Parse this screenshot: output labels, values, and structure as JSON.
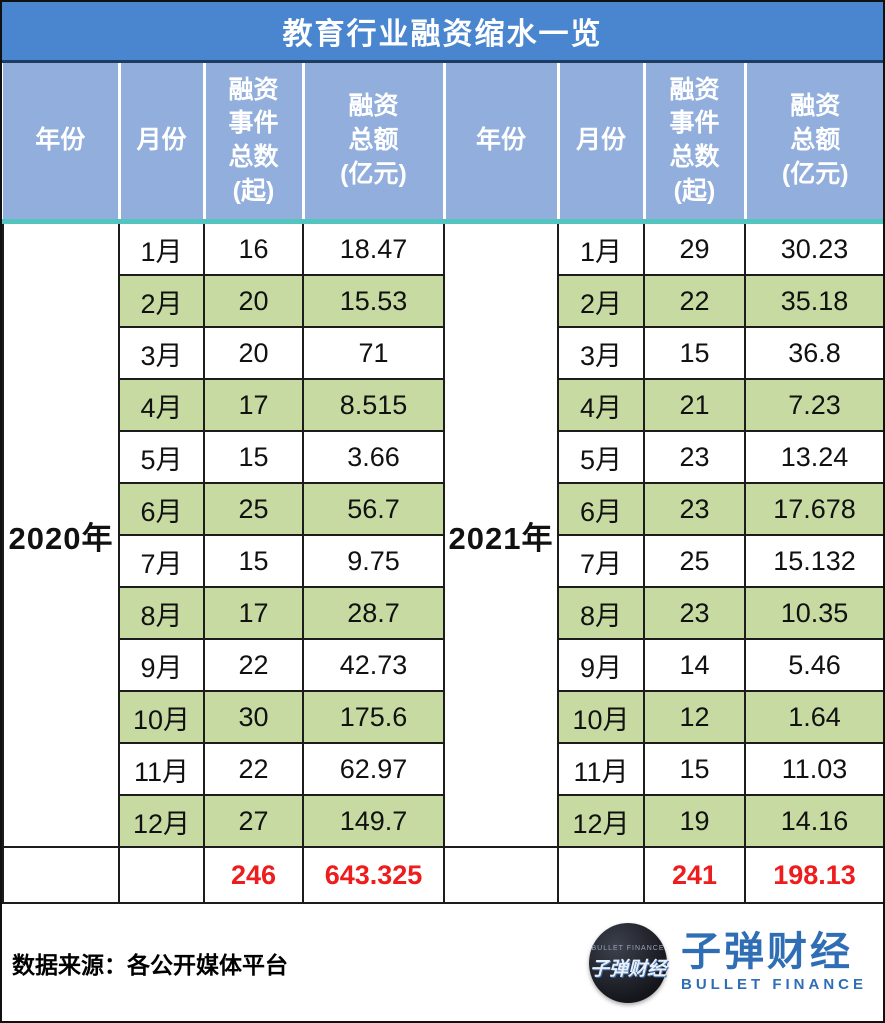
{
  "title": "教育行业融资缩水一览",
  "columns": {
    "year": "年份",
    "month": "月份",
    "count": "融资事件总数(起)",
    "amount": "融资总额(亿元)"
  },
  "table": {
    "left": {
      "year": "2020年",
      "rows": [
        {
          "month": "1月",
          "count": "16",
          "amount": "18.47"
        },
        {
          "month": "2月",
          "count": "20",
          "amount": "15.53"
        },
        {
          "month": "3月",
          "count": "20",
          "amount": "71"
        },
        {
          "month": "4月",
          "count": "17",
          "amount": "8.515"
        },
        {
          "month": "5月",
          "count": "15",
          "amount": "3.66"
        },
        {
          "month": "6月",
          "count": "25",
          "amount": "56.7"
        },
        {
          "month": "7月",
          "count": "15",
          "amount": "9.75"
        },
        {
          "month": "8月",
          "count": "17",
          "amount": "28.7"
        },
        {
          "month": "9月",
          "count": "22",
          "amount": "42.73"
        },
        {
          "month": "10月",
          "count": "30",
          "amount": "175.6"
        },
        {
          "month": "11月",
          "count": "22",
          "amount": "62.97"
        },
        {
          "month": "12月",
          "count": "27",
          "amount": "149.7"
        }
      ],
      "total_count": "246",
      "total_amount": "643.325"
    },
    "right": {
      "year": "2021年",
      "rows": [
        {
          "month": "1月",
          "count": "29",
          "amount": "30.23"
        },
        {
          "month": "2月",
          "count": "22",
          "amount": "35.18"
        },
        {
          "month": "3月",
          "count": "15",
          "amount": "36.8"
        },
        {
          "month": "4月",
          "count": "21",
          "amount": "7.23"
        },
        {
          "month": "5月",
          "count": "23",
          "amount": "13.24"
        },
        {
          "month": "6月",
          "count": "23",
          "amount": "17.678"
        },
        {
          "month": "7月",
          "count": "25",
          "amount": "15.132"
        },
        {
          "month": "8月",
          "count": "23",
          "amount": "10.35"
        },
        {
          "month": "9月",
          "count": "14",
          "amount": "5.46"
        },
        {
          "month": "10月",
          "count": "12",
          "amount": "1.64"
        },
        {
          "month": "11月",
          "count": "15",
          "amount": "11.03"
        },
        {
          "month": "12月",
          "count": "19",
          "amount": "14.16"
        }
      ],
      "total_count": "241",
      "total_amount": "198.13"
    }
  },
  "footer": {
    "source": "数据来源：各公开媒体平台",
    "logo_circle_top": "BULLET FINANCE",
    "logo_circle_main": "子弹财经",
    "logo_cn": "子弹财经",
    "logo_en": "BULLET FINANCE"
  },
  "colors": {
    "title_bar_blue": "#4a86d0",
    "header_blue": "#91aedd",
    "accent_teal": "#52c5be",
    "row_green": "#c7daa1",
    "total_red": "#ee1c1c",
    "logo_blue": "#2f6db5",
    "border_black": "#1c1c1c"
  },
  "chart_data": {
    "type": "table",
    "title": "教育行业融资缩水一览",
    "categories": [
      "1月",
      "2月",
      "3月",
      "4月",
      "5月",
      "6月",
      "7月",
      "8月",
      "9月",
      "10月",
      "11月",
      "12月"
    ],
    "series": [
      {
        "name": "2020年 融资事件总数(起)",
        "values": [
          16,
          20,
          20,
          17,
          15,
          25,
          15,
          17,
          22,
          30,
          22,
          27
        ]
      },
      {
        "name": "2020年 融资总额(亿元)",
        "values": [
          18.47,
          15.53,
          71,
          8.515,
          3.66,
          56.7,
          9.75,
          28.7,
          42.73,
          175.6,
          62.97,
          149.7
        ]
      },
      {
        "name": "2021年 融资事件总数(起)",
        "values": [
          29,
          22,
          15,
          21,
          23,
          23,
          25,
          23,
          14,
          12,
          15,
          19
        ]
      },
      {
        "name": "2021年 融资总额(亿元)",
        "values": [
          30.23,
          35.18,
          36.8,
          7.23,
          13.24,
          17.678,
          15.132,
          10.35,
          5.46,
          1.64,
          11.03,
          14.16
        ]
      }
    ],
    "totals": {
      "2020_count": 246,
      "2020_amount": 643.325,
      "2021_count": 241,
      "2021_amount": 198.13
    },
    "source": "数据来源：各公开媒体平台"
  }
}
